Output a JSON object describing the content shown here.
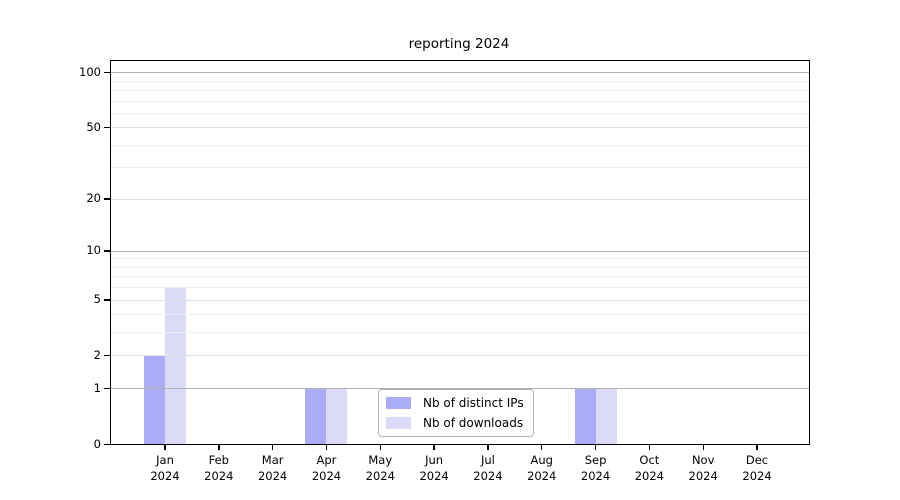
{
  "title": "reporting 2024",
  "colors": {
    "distinct_ips": "#abacf6",
    "downloads": "#dbdbf8",
    "grid_decade": "#b0b0b0",
    "grid_submajor": "#e0e0e0",
    "grid_minor": "#eeeeee",
    "axis": "#000000",
    "legend_border": "#b0b0b0",
    "background": "#ffffff"
  },
  "legend": {
    "items": [
      {
        "label": "Nb of distinct IPs",
        "color": "#abacf6"
      },
      {
        "label": "Nb of downloads",
        "color": "#dbdbf8"
      }
    ]
  },
  "chart_data": {
    "type": "bar",
    "title": "reporting 2024",
    "categories": [
      "Jan",
      "Feb",
      "Mar",
      "Apr",
      "May",
      "Jun",
      "Jul",
      "Aug",
      "Sep",
      "Oct",
      "Nov",
      "Dec"
    ],
    "x_year": "2024",
    "series": [
      {
        "name": "Nb of distinct IPs",
        "color": "#abacf6",
        "values": [
          2,
          0,
          0,
          1,
          0,
          0,
          0,
          0,
          1,
          0,
          0,
          0
        ]
      },
      {
        "name": "Nb of downloads",
        "color": "#dbdbf8",
        "values": [
          6,
          0,
          0,
          1,
          0,
          0,
          0,
          0,
          1,
          0,
          0,
          0
        ]
      }
    ],
    "yscale": "log1p",
    "ylim": [
      0,
      115
    ],
    "yticks": [
      0,
      1,
      2,
      5,
      10,
      20,
      50,
      100
    ],
    "ytick_decades": [
      1,
      10,
      100
    ],
    "ytick_minor": [
      3,
      4,
      6,
      7,
      8,
      9,
      30,
      40,
      60,
      70,
      80,
      90
    ],
    "grid": true,
    "legend_position": "lower-center"
  }
}
